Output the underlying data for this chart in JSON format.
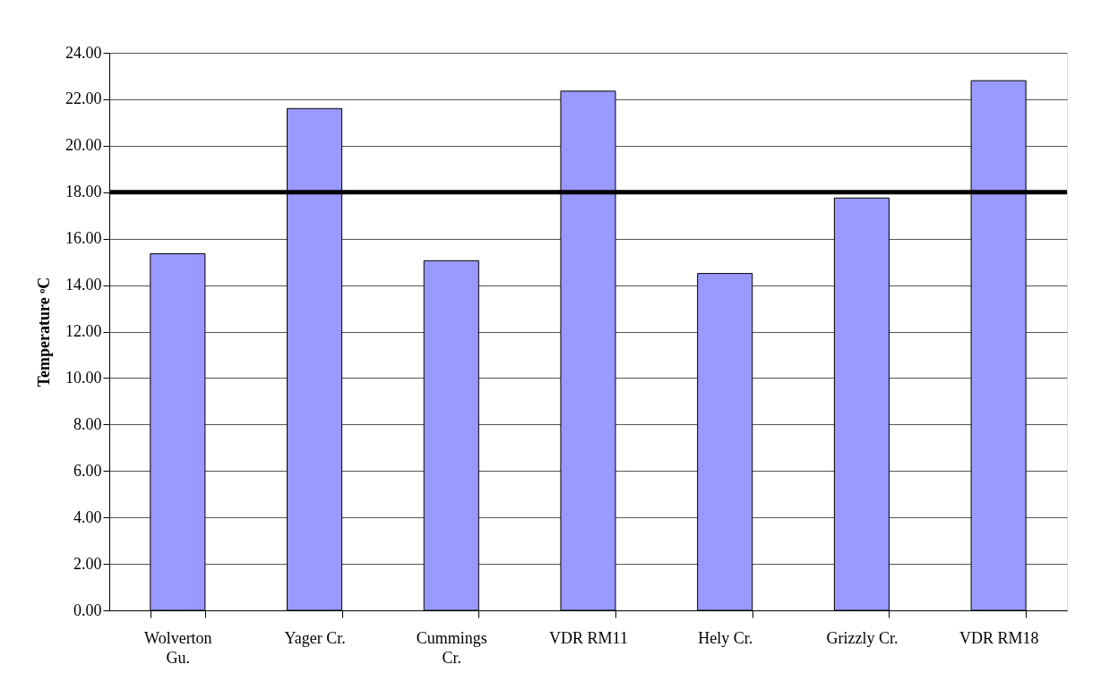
{
  "chart_data": {
    "type": "bar",
    "ylabel": "Temperature ᵒC",
    "categories": [
      "Wolverton Gu.",
      "Yager Cr.",
      "Cummings Cr.",
      "VDR RM11",
      "Hely Cr.",
      "Grizzly Cr.",
      "VDR RM18"
    ],
    "values": [
      15.35,
      21.6,
      15.05,
      22.35,
      14.5,
      17.75,
      22.8
    ],
    "color": "#9999ff",
    "ylim": [
      0,
      24
    ],
    "yticks": [
      {
        "value": 0,
        "label": "0.00"
      },
      {
        "value": 2,
        "label": "2.00"
      },
      {
        "value": 4,
        "label": "4.00"
      },
      {
        "value": 6,
        "label": "6.00"
      },
      {
        "value": 8,
        "label": "8.00"
      },
      {
        "value": 10,
        "label": "10.00"
      },
      {
        "value": 12,
        "label": "12.00"
      },
      {
        "value": 14,
        "label": "14.00"
      },
      {
        "value": 16,
        "label": "16.00"
      },
      {
        "value": 18,
        "label": "18.00"
      },
      {
        "value": 20,
        "label": "20.00"
      },
      {
        "value": 22,
        "label": "22.00"
      },
      {
        "value": 24,
        "label": "24.00"
      }
    ],
    "ref_lines": [
      {
        "axis": "y",
        "value": 18,
        "color": "#000000"
      }
    ],
    "grid": "y",
    "legend": false
  }
}
